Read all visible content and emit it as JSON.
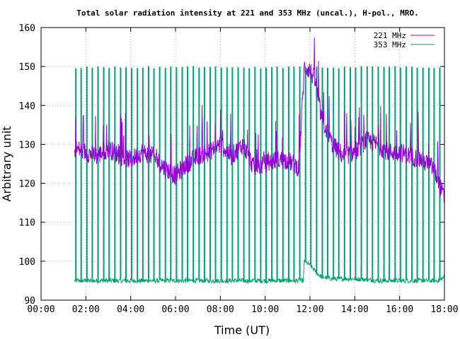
{
  "chart_data": {
    "type": "line",
    "title": "Total solar radiation intensity at 221 and 353 MHz (uncal.), H-pol., MRO.",
    "xlabel": "Time (UT)",
    "ylabel": "Arbitrary unit",
    "xlim": [
      0,
      18
    ],
    "ylim": [
      90,
      160
    ],
    "x_ticks": [
      "00:00",
      "02:00",
      "04:00",
      "06:00",
      "08:00",
      "10:00",
      "12:00",
      "14:00",
      "16:00",
      "18:00"
    ],
    "y_ticks": [
      90,
      100,
      110,
      120,
      130,
      140,
      150,
      160
    ],
    "grid": true,
    "legend_position": "top-right",
    "series": [
      {
        "name": "221 MHz",
        "color": "#9400d3",
        "x": [
          1.5,
          2.0,
          2.5,
          3.0,
          3.5,
          4.0,
          4.5,
          5.0,
          5.5,
          6.0,
          6.5,
          7.0,
          7.5,
          8.0,
          8.5,
          9.0,
          9.5,
          10.0,
          10.5,
          11.0,
          11.5,
          11.75,
          12.0,
          12.25,
          12.5,
          13.0,
          13.5,
          14.0,
          14.5,
          15.0,
          15.5,
          16.0,
          16.5,
          17.0,
          17.5,
          17.75,
          18.0
        ],
        "values": [
          129,
          128,
          127,
          129,
          127,
          126,
          128,
          127,
          124,
          122,
          125,
          127,
          128,
          130,
          127,
          130,
          124,
          125,
          126,
          126,
          124,
          150,
          149,
          146,
          137,
          130,
          127,
          128,
          131,
          130,
          128,
          128,
          127,
          126,
          124,
          120,
          116
        ]
      },
      {
        "name": "353 MHz",
        "color": "#009e73",
        "baseline_x": [
          1.5,
          11.7,
          11.75,
          12.0,
          12.3,
          12.5,
          13.0,
          14.0,
          15.0,
          16.0,
          17.0,
          17.75,
          18.0
        ],
        "baseline_values": [
          95,
          95,
          100,
          99,
          97,
          96,
          95.5,
          95.5,
          95,
          95,
          95,
          95,
          96
        ],
        "spike_peak": 150,
        "spike_interval": 0.25
      }
    ]
  }
}
